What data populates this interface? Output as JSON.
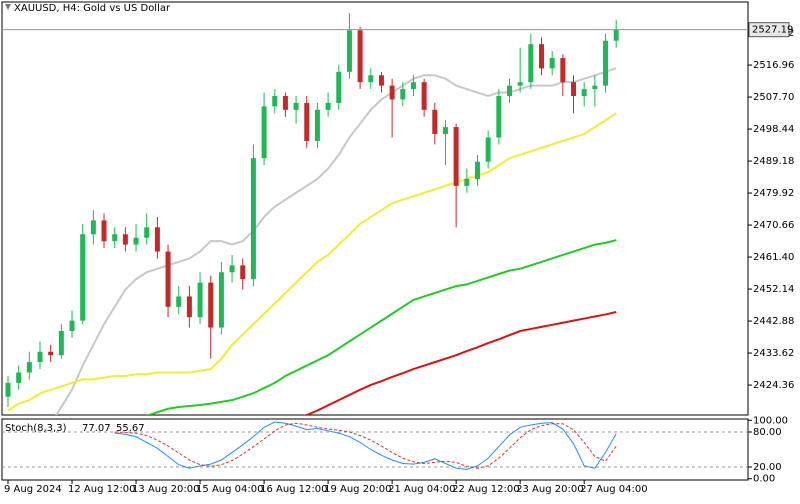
{
  "chart_data": {
    "type": "candlestick",
    "title": "XAUUSD, H4:  Gold vs US Dollar",
    "categories": [
      "9 Aug 2024",
      null,
      null,
      null,
      null,
      null,
      "12 Aug 12:00",
      null,
      null,
      null,
      null,
      null,
      "13 Aug 20:00",
      null,
      null,
      null,
      null,
      null,
      "15 Aug 04:00",
      null,
      null,
      null,
      null,
      null,
      "16 Aug 12:00",
      null,
      null,
      null,
      null,
      null,
      "19 Aug 20:00",
      null,
      null,
      null,
      null,
      null,
      "21 Aug 04:00",
      null,
      null,
      null,
      null,
      null,
      "22 Aug 12:00",
      null,
      null,
      null,
      null,
      null,
      "23 Aug 20:00",
      null,
      null,
      null,
      null,
      null,
      "27 Aug 04:00",
      null,
      null,
      null
    ],
    "open": [
      2421,
      2425,
      2428,
      2431,
      2434,
      2433,
      2440,
      2443,
      2468,
      2472,
      2466,
      2468,
      2465,
      2467,
      2470,
      2463,
      2447,
      2450,
      2444,
      2454,
      2441,
      2457,
      2459,
      2455,
      2490,
      2505,
      2508,
      2504,
      2506,
      2495,
      2504,
      2506,
      2515,
      2527,
      2512,
      2514,
      2511,
      2507,
      2510,
      2512,
      2504,
      2497,
      2499,
      2482,
      2484,
      2489,
      2496,
      2508,
      2511,
      2512,
      2523,
      2516,
      2519,
      2512,
      2508,
      2510,
      2511,
      2524
    ],
    "high": [
      2427,
      2430,
      2434,
      2437,
      2436,
      2442,
      2446,
      2471,
      2475,
      2474,
      2470,
      2470,
      2471,
      2474,
      2473,
      2465,
      2453,
      2453,
      2457,
      2456,
      2460,
      2462,
      2461,
      2494,
      2509,
      2510,
      2509,
      2508,
      2508,
      2506,
      2509,
      2517,
      2532,
      2528,
      2516,
      2515,
      2513,
      2512,
      2514,
      2513,
      2506,
      2501,
      2500,
      2487,
      2491,
      2498,
      2510,
      2513,
      2522,
      2526,
      2525,
      2521,
      2520,
      2514,
      2512,
      2514,
      2526,
      2530
    ],
    "low": [
      2418,
      2423,
      2426,
      2429,
      2431,
      2432,
      2438,
      2442,
      2465,
      2464,
      2464,
      2463,
      2463,
      2465,
      2461,
      2444,
      2445,
      2441,
      2442,
      2432,
      2439,
      2454,
      2452,
      2453,
      2488,
      2503,
      2502,
      2500,
      2493,
      2493,
      2502,
      2504,
      2513,
      2510,
      2510,
      2509,
      2496,
      2505,
      2508,
      2502,
      2494,
      2488,
      2470,
      2480,
      2482,
      2487,
      2494,
      2506,
      2509,
      2510,
      2514,
      2514,
      2508,
      2503,
      2505,
      2505,
      2509,
      2522
    ],
    "close": [
      2425,
      2428,
      2431,
      2434,
      2433,
      2440,
      2443,
      2468,
      2472,
      2466,
      2468,
      2465,
      2467,
      2470,
      2463,
      2447,
      2450,
      2444,
      2454,
      2441,
      2457,
      2459,
      2455,
      2490,
      2505,
      2508,
      2504,
      2506,
      2495,
      2504,
      2506,
      2515,
      2527,
      2512,
      2514,
      2511,
      2507,
      2510,
      2512,
      2504,
      2497,
      2499,
      2482,
      2484,
      2489,
      2496,
      2508,
      2511,
      2512,
      2523,
      2516,
      2519,
      2512,
      2508,
      2510,
      2511,
      2524,
      2527.19
    ],
    "up_color": "#1db954",
    "down_color": "#c62828",
    "ylim": [
      2415.7,
      2535.2
    ],
    "yticks": [
      2424.36,
      2433.62,
      2442.88,
      2452.14,
      {
        "value": 2461.4,
        "label": "2461.40"
      },
      2470.66,
      2479.92,
      2489.18,
      2498.44,
      {
        "value": 2507.7,
        "label": "2507.70"
      },
      2516.96,
      2526.22
    ],
    "current_price": 2527.19,
    "overlays": [
      {
        "color": "#c8c8c8",
        "values": [
          2405,
          2407,
          2409,
          2411,
          2413,
          2418,
          2423,
          2430,
          2436,
          2442,
          2447,
          2452,
          2455,
          2457,
          2458,
          2459,
          2460,
          2461,
          2463,
          2466,
          2466,
          2465,
          2466,
          2469,
          2473,
          2476,
          2478,
          2480,
          2482,
          2484,
          2487,
          2491,
          2496,
          2500,
          2504,
          2507,
          2509,
          2511,
          2513,
          2514,
          2514,
          2513,
          2511,
          2510,
          2509,
          2508,
          2509,
          2509,
          2510,
          2511,
          2511,
          2511,
          2512,
          2512,
          2513,
          2514,
          2515,
          2516
        ]
      },
      {
        "color": "#f2ee30",
        "values": [
          2417,
          2419,
          2420,
          2422,
          2423,
          2424,
          2425,
          2426,
          2426,
          2426.5,
          2427,
          2427,
          2427.5,
          2427.5,
          2428,
          2428,
          2428,
          2428,
          2428.5,
          2429,
          2432,
          2436,
          2439,
          2442,
          2445,
          2448,
          2451,
          2454,
          2457,
          2460,
          2462,
          2465,
          2468,
          2471,
          2473,
          2475,
          2477,
          2478,
          2479,
          2480,
          2481,
          2482,
          2483,
          2484,
          2485,
          2486,
          2488,
          2490,
          2491,
          2492,
          2493,
          2494,
          2495,
          2496,
          2497,
          2499,
          2501,
          2503
        ]
      },
      {
        "color": "#22cc22",
        "values": [
          2404,
          2405,
          2406,
          2407,
          2408,
          2409,
          2410,
          2411,
          2411.5,
          2412,
          2413,
          2413.5,
          2414,
          2415.5,
          2416.5,
          2417.5,
          2418,
          2418.3,
          2418.6,
          2419,
          2419.5,
          2420,
          2421,
          2422,
          2423.5,
          2425,
          2427,
          2428.5,
          2430,
          2431.5,
          2433,
          2435,
          2437,
          2439,
          2441,
          2443,
          2445,
          2447,
          2449,
          2450,
          2451,
          2452,
          2453,
          2453.5,
          2454.5,
          2455.5,
          2456.5,
          2457.5,
          2458,
          2459,
          2460,
          2461,
          2462,
          2463,
          2464,
          2465,
          2465.5,
          2466.3
        ]
      },
      {
        "color": "#dd1111",
        "values": [
          2398,
          2398.6,
          2399.2,
          2399.8,
          2400.4,
          2401,
          2401.6,
          2402.2,
          2402.8,
          2403.4,
          2404,
          2404.6,
          2405.2,
          2405.8,
          2406.4,
          2407,
          2407.6,
          2408.2,
          2408.8,
          2409.4,
          2410,
          2410.6,
          2411.2,
          2411.8,
          2412.4,
          2413,
          2413.6,
          2414.6,
          2415.7,
          2417,
          2418.5,
          2420,
          2421.5,
          2423,
          2424.4,
          2425.5,
          2426.7,
          2427.8,
          2429,
          2430,
          2431,
          2432,
          2433,
          2434.2,
          2435.3,
          2436.5,
          2437.6,
          2438.8,
          2440,
          2440.6,
          2441.2,
          2441.8,
          2442.4,
          2443,
          2443.6,
          2444.2,
          2444.8,
          2445.5
        ]
      }
    ],
    "subchart": {
      "label": "Stoch(8,3,3)",
      "ylim": [
        0,
        100
      ],
      "yticks": [
        {
          "value": 0,
          "label": "0.00"
        },
        {
          "value": 20,
          "label": "20.00"
        },
        {
          "value": 80,
          "label": "80.00"
        },
        {
          "value": 100,
          "label": "100.00"
        }
      ],
      "series": [
        {
          "color": "#1e90ff",
          "dashed": false,
          "values": [
            null,
            null,
            null,
            null,
            null,
            null,
            null,
            null,
            null,
            null,
            78,
            76,
            72,
            62,
            52,
            38,
            24,
            18,
            22,
            25,
            32,
            45,
            58,
            72,
            88,
            97,
            95,
            90,
            84,
            86,
            82,
            78,
            72,
            62,
            50,
            40,
            32,
            26,
            25,
            28,
            34,
            26,
            18,
            16,
            22,
            35,
            55,
            75,
            88,
            92,
            95,
            96,
            85,
            60,
            22,
            18,
            45,
            77.07
          ]
        },
        {
          "color": "#e03030",
          "dashed": true,
          "values": [
            null,
            null,
            null,
            null,
            null,
            null,
            null,
            null,
            null,
            null,
            80,
            79,
            78,
            74,
            66,
            56,
            44,
            32,
            24,
            21,
            24,
            31,
            42,
            55,
            68,
            82,
            92,
            95,
            92,
            88,
            85,
            83,
            80,
            74,
            66,
            56,
            45,
            35,
            29,
            26,
            28,
            30,
            28,
            21,
            18,
            22,
            35,
            52,
            70,
            84,
            91,
            94,
            94,
            84,
            62,
            38,
            30,
            55.67
          ]
        }
      ]
    }
  }
}
